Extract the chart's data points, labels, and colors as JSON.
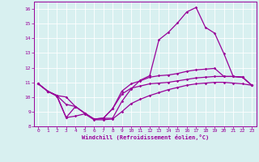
{
  "xlabel": "Windchill (Refroidissement éolien,°C)",
  "bg_color": "#d8f0f0",
  "line_color": "#990099",
  "grid_color": "#ffffff",
  "xlim": [
    -0.5,
    23.5
  ],
  "ylim": [
    8,
    16.5
  ],
  "yticks": [
    8,
    9,
    10,
    11,
    12,
    13,
    14,
    15,
    16
  ],
  "xticks": [
    0,
    1,
    2,
    3,
    4,
    5,
    6,
    7,
    8,
    9,
    10,
    11,
    12,
    13,
    14,
    15,
    16,
    17,
    18,
    19,
    20,
    21,
    22,
    23
  ],
  "curve1_x": [
    0,
    1,
    2,
    3,
    4,
    5,
    6,
    7,
    8,
    9,
    10,
    11,
    12,
    13,
    14,
    15,
    16,
    17,
    18,
    19,
    20,
    21,
    22,
    23
  ],
  "curve1_y": [
    10.9,
    10.4,
    10.1,
    8.6,
    9.35,
    8.9,
    8.5,
    8.55,
    8.55,
    9.7,
    10.55,
    11.15,
    11.45,
    13.9,
    14.4,
    15.05,
    15.8,
    16.1,
    14.75,
    14.35,
    12.95,
    11.4,
    11.35,
    10.8
  ],
  "curve2_x": [
    0,
    1,
    2,
    3,
    4,
    5,
    6,
    7,
    8,
    9,
    10,
    11,
    12,
    13,
    14,
    15,
    16,
    17,
    18,
    19,
    20,
    21,
    22,
    23
  ],
  "curve2_y": [
    10.9,
    10.4,
    10.1,
    10.0,
    9.35,
    8.9,
    8.5,
    8.55,
    9.2,
    10.4,
    10.9,
    11.1,
    11.35,
    11.45,
    11.5,
    11.6,
    11.75,
    11.85,
    11.9,
    11.95,
    11.4,
    11.4,
    11.35,
    10.8
  ],
  "curve3_x": [
    0,
    1,
    2,
    3,
    4,
    5,
    6,
    7,
    8,
    9,
    10,
    11,
    12,
    13,
    14,
    15,
    16,
    17,
    18,
    19,
    20,
    21,
    22,
    23
  ],
  "curve3_y": [
    10.9,
    10.4,
    10.1,
    9.5,
    9.35,
    8.9,
    8.5,
    8.55,
    9.2,
    10.2,
    10.6,
    10.75,
    10.9,
    10.95,
    11.0,
    11.1,
    11.2,
    11.3,
    11.35,
    11.4,
    11.4,
    11.4,
    11.35,
    10.8
  ],
  "curve4_x": [
    0,
    1,
    2,
    3,
    4,
    5,
    6,
    7,
    8,
    9,
    10,
    11,
    12,
    13,
    14,
    15,
    16,
    17,
    18,
    19,
    20,
    21,
    22,
    23
  ],
  "curve4_y": [
    10.9,
    10.4,
    10.05,
    8.6,
    8.7,
    8.85,
    8.45,
    8.45,
    8.5,
    9.0,
    9.55,
    9.85,
    10.1,
    10.3,
    10.5,
    10.65,
    10.8,
    10.9,
    10.95,
    11.0,
    11.0,
    10.95,
    10.9,
    10.8
  ]
}
